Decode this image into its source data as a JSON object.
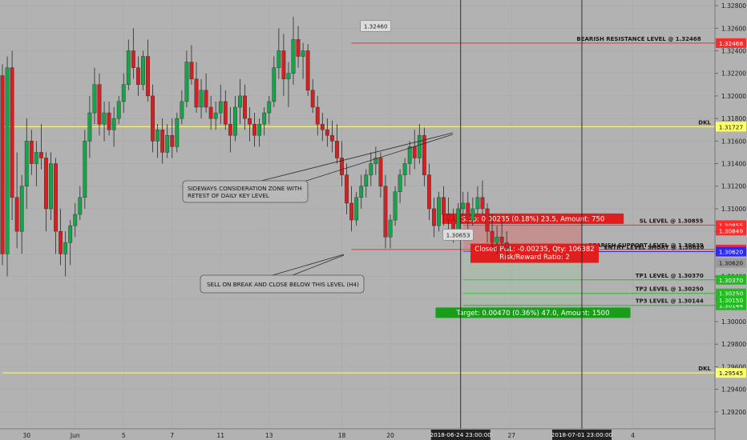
{
  "chart_data": {
    "type": "candlestick",
    "title": "",
    "xlabel": "",
    "ylabel": "",
    "ylim": [
      1.2905,
      1.3285
    ],
    "y_ticks": [
      "1.32800",
      "1.32600",
      "1.32400",
      "1.32200",
      "1.32000",
      "1.31800",
      "1.31600",
      "1.31400",
      "1.31200",
      "1.31000",
      "1.30800",
      "1.30600",
      "1.30400",
      "1.30200",
      "1.30000",
      "1.29800",
      "1.29600",
      "1.29400",
      "1.29200"
    ],
    "x_ticks": [
      {
        "label": "30",
        "idx": 5
      },
      {
        "label": "Jun",
        "idx": 15
      },
      {
        "label": "5",
        "idx": 25
      },
      {
        "label": "7",
        "idx": 35
      },
      {
        "label": "11",
        "idx": 45
      },
      {
        "label": "13",
        "idx": 55
      },
      {
        "label": "18",
        "idx": 70
      },
      {
        "label": "20",
        "idx": 80
      },
      {
        "label": "27",
        "idx": 105
      },
      {
        "label": "4",
        "idx": 130
      }
    ],
    "time_markers": [
      {
        "label": "2018-06-24 23:00:00",
        "idx": 94.5
      },
      {
        "label": "2018-07-01 23:00:00",
        "idx": 119.5
      }
    ],
    "grid": true,
    "candles": [
      [
        1.3218,
        1.3228,
        1.305,
        1.306
      ],
      [
        1.306,
        1.3235,
        1.304,
        1.3225
      ],
      [
        1.3225,
        1.324,
        1.309,
        1.311
      ],
      [
        1.311,
        1.315,
        1.3065,
        1.308
      ],
      [
        1.308,
        1.313,
        1.306,
        1.312
      ],
      [
        1.312,
        1.318,
        1.31,
        1.316
      ],
      [
        1.316,
        1.317,
        1.313,
        1.314
      ],
      [
        1.314,
        1.316,
        1.312,
        1.315
      ],
      [
        1.315,
        1.3175,
        1.3135,
        1.3145
      ],
      [
        1.3145,
        1.315,
        1.308,
        1.31
      ],
      [
        1.31,
        1.315,
        1.309,
        1.314
      ],
      [
        1.314,
        1.3145,
        1.306,
        1.308
      ],
      [
        1.308,
        1.31,
        1.305,
        1.306
      ],
      [
        1.306,
        1.308,
        1.304,
        1.307
      ],
      [
        1.307,
        1.309,
        1.305,
        1.3085
      ],
      [
        1.3085,
        1.3105,
        1.3075,
        1.3095
      ],
      [
        1.3095,
        1.312,
        1.309,
        1.311
      ],
      [
        1.311,
        1.317,
        1.31,
        1.316
      ],
      [
        1.316,
        1.32,
        1.3145,
        1.3185
      ],
      [
        1.3185,
        1.3225,
        1.3175,
        1.321
      ],
      [
        1.321,
        1.322,
        1.3165,
        1.3175
      ],
      [
        1.3175,
        1.3195,
        1.316,
        1.3185
      ],
      [
        1.3185,
        1.3195,
        1.3165,
        1.317
      ],
      [
        1.317,
        1.319,
        1.3155,
        1.318
      ],
      [
        1.318,
        1.32,
        1.3175,
        1.3195
      ],
      [
        1.3195,
        1.322,
        1.3185,
        1.321
      ],
      [
        1.321,
        1.325,
        1.3205,
        1.324
      ],
      [
        1.324,
        1.326,
        1.3215,
        1.3225
      ],
      [
        1.3225,
        1.3235,
        1.32,
        1.321
      ],
      [
        1.321,
        1.324,
        1.3205,
        1.3235
      ],
      [
        1.3235,
        1.325,
        1.3195,
        1.32
      ],
      [
        1.32,
        1.321,
        1.315,
        1.316
      ],
      [
        1.316,
        1.3175,
        1.3145,
        1.317
      ],
      [
        1.317,
        1.318,
        1.314,
        1.315
      ],
      [
        1.315,
        1.3175,
        1.3145,
        1.3165
      ],
      [
        1.3165,
        1.318,
        1.3145,
        1.3155
      ],
      [
        1.3155,
        1.3185,
        1.315,
        1.318
      ],
      [
        1.318,
        1.3205,
        1.3175,
        1.3195
      ],
      [
        1.3195,
        1.324,
        1.319,
        1.323
      ],
      [
        1.323,
        1.3245,
        1.321,
        1.3215
      ],
      [
        1.3215,
        1.323,
        1.3185,
        1.319
      ],
      [
        1.319,
        1.3215,
        1.318,
        1.3205
      ],
      [
        1.3205,
        1.322,
        1.3185,
        1.319
      ],
      [
        1.319,
        1.32,
        1.317,
        1.318
      ],
      [
        1.318,
        1.3195,
        1.317,
        1.3185
      ],
      [
        1.3185,
        1.321,
        1.3175,
        1.3195
      ],
      [
        1.3195,
        1.3205,
        1.317,
        1.3175
      ],
      [
        1.3175,
        1.319,
        1.315,
        1.3165
      ],
      [
        1.3165,
        1.32,
        1.316,
        1.319
      ],
      [
        1.319,
        1.3215,
        1.3175,
        1.32
      ],
      [
        1.32,
        1.321,
        1.317,
        1.318
      ],
      [
        1.318,
        1.319,
        1.316,
        1.3175
      ],
      [
        1.3175,
        1.3185,
        1.3155,
        1.3165
      ],
      [
        1.3165,
        1.318,
        1.3155,
        1.3175
      ],
      [
        1.3175,
        1.319,
        1.3165,
        1.3185
      ],
      [
        1.3185,
        1.32,
        1.3175,
        1.3195
      ],
      [
        1.3195,
        1.3235,
        1.319,
        1.3225
      ],
      [
        1.3225,
        1.326,
        1.3215,
        1.324
      ],
      [
        1.324,
        1.3255,
        1.32,
        1.3215
      ],
      [
        1.3215,
        1.323,
        1.319,
        1.322
      ],
      [
        1.322,
        1.327,
        1.321,
        1.325
      ],
      [
        1.325,
        1.3262,
        1.3225,
        1.3235
      ],
      [
        1.3235,
        1.3247,
        1.3215,
        1.324
      ],
      [
        1.324,
        1.3246,
        1.32,
        1.3205
      ],
      [
        1.3205,
        1.3215,
        1.3185,
        1.319
      ],
      [
        1.319,
        1.32,
        1.3165,
        1.3175
      ],
      [
        1.3175,
        1.3185,
        1.316,
        1.317
      ],
      [
        1.317,
        1.318,
        1.3155,
        1.3165
      ],
      [
        1.3165,
        1.3178,
        1.315,
        1.316
      ],
      [
        1.316,
        1.3175,
        1.314,
        1.3145
      ],
      [
        1.3145,
        1.316,
        1.312,
        1.313
      ],
      [
        1.313,
        1.314,
        1.3095,
        1.3105
      ],
      [
        1.3105,
        1.312,
        1.308,
        1.309
      ],
      [
        1.309,
        1.3115,
        1.3085,
        1.311
      ],
      [
        1.311,
        1.313,
        1.31,
        1.312
      ],
      [
        1.312,
        1.3135,
        1.311,
        1.313
      ],
      [
        1.313,
        1.315,
        1.312,
        1.314
      ],
      [
        1.314,
        1.3155,
        1.313,
        1.3145
      ],
      [
        1.3145,
        1.315,
        1.311,
        1.312
      ],
      [
        1.312,
        1.313,
        1.3065,
        1.3075
      ],
      [
        1.3075,
        1.3095,
        1.3065,
        1.309
      ],
      [
        1.309,
        1.312,
        1.3085,
        1.3115
      ],
      [
        1.3115,
        1.3135,
        1.3105,
        1.313
      ],
      [
        1.313,
        1.3145,
        1.312,
        1.314
      ],
      [
        1.314,
        1.316,
        1.313,
        1.3155
      ],
      [
        1.3155,
        1.317,
        1.3135,
        1.3145
      ],
      [
        1.3145,
        1.3175,
        1.314,
        1.3165
      ],
      [
        1.3165,
        1.3172,
        1.312,
        1.313
      ],
      [
        1.313,
        1.314,
        1.309,
        1.31
      ],
      [
        1.31,
        1.311,
        1.3075,
        1.3085
      ],
      [
        1.3085,
        1.3115,
        1.308,
        1.311
      ],
      [
        1.311,
        1.312,
        1.3085,
        1.3095
      ],
      [
        1.3095,
        1.311,
        1.308,
        1.309
      ],
      [
        1.309,
        1.31,
        1.307,
        1.308
      ],
      [
        1.308,
        1.3105,
        1.3075,
        1.31
      ],
      [
        1.31,
        1.3115,
        1.309,
        1.3105
      ],
      [
        1.3105,
        1.3115,
        1.308,
        1.309
      ],
      [
        1.309,
        1.311,
        1.3085,
        1.31
      ],
      [
        1.31,
        1.312,
        1.3095,
        1.311
      ],
      [
        1.311,
        1.3125,
        1.3095,
        1.31
      ],
      [
        1.31,
        1.3105,
        1.307,
        1.308
      ],
      [
        1.308,
        1.3095,
        1.3065,
        1.307
      ],
      [
        1.307,
        1.3085,
        1.306,
        1.3075
      ],
      [
        1.3075,
        1.309,
        1.3065,
        1.307
      ],
      [
        1.307,
        1.308,
        1.3055,
        1.3065
      ]
    ],
    "levels": [
      {
        "label": "BEARISH RESISTANCE LEVEL @ 1.32468",
        "price": 1.32468,
        "badge": "1.32468",
        "color": "#ff2b2b",
        "start_idx": 72
      },
      {
        "label": "DKL",
        "price": 1.31727,
        "badge": "1.31727",
        "color": "#ffff66",
        "start_idx": 0
      },
      {
        "label": "SL LEVEL @ 1.30855",
        "price": 1.30855,
        "badge": "1.30855",
        "color": "#ff2b2b",
        "start_idx": 95
      },
      {
        "label": "BEARISH SUPPORT LEVEL @ 1.30639",
        "price": 1.30639,
        "badge": "1.30639",
        "color": "#ff2b2b",
        "start_idx": 72
      },
      {
        "label": "ENTRY LEVEL SHORT @ 1.30620",
        "price": 1.3062,
        "badge": "1.30620",
        "color": "#2a2aff",
        "start_idx": 95
      },
      {
        "label": "TP1 LEVEL @ 1.30370",
        "price": 1.3037,
        "badge": "1.30370",
        "color": "#22bb22",
        "start_idx": 95
      },
      {
        "label": "TP2 LEVEL @ 1.30250",
        "price": 1.3025,
        "badge": "1.30250",
        "color": "#22bb22",
        "start_idx": 95
      },
      {
        "label": "TP3 LEVEL @ 1.30144",
        "price": 1.30144,
        "badge": "1.30144",
        "color": "#22bb22",
        "start_idx": 95
      },
      {
        "label": "DKL",
        "price": 1.29545,
        "badge": "1.29545",
        "color": "#ffff66",
        "start_idx": 0
      }
    ],
    "extra_badges": [
      {
        "text": "1.30849",
        "price": 1.30806,
        "color": "#ff2b2b"
      },
      {
        "text": "1.30150",
        "price": 1.3019,
        "color": "#22bb22"
      },
      {
        "text": "1.30620",
        "price": 1.3052,
        "color": "#9a9a9a"
      }
    ],
    "price_callouts": [
      {
        "text": "1.32460",
        "idx": 74,
        "price": 1.3262
      },
      {
        "text": "1.30653",
        "idx": 91,
        "price": 1.3077
      }
    ],
    "trade": {
      "entry": 1.3062,
      "stop": 1.30855,
      "target": 1.3015,
      "start_idx": 95,
      "end_idx": 119.5,
      "stop_label": "Stop: 0.00235 (0.18%) 23.5, Amount: 750",
      "pnl_label": "Closed P&L: -0.00235, Qty: 106382",
      "ratio_label": "Risk/Reward Ratio: 2",
      "target_label": "Target: 0.00470 (0.36%) 47.0, Amount: 1500"
    },
    "notes": [
      {
        "lines": [
          "SIDEWAYS CONSIDERATION ZONE WITH",
          "RETEST OF DAILY KEY LEVEL"
        ]
      },
      {
        "lines": [
          "SELL ON BREAK AND CLOSE BELOW THIS LEVEL (H4)"
        ]
      }
    ]
  }
}
